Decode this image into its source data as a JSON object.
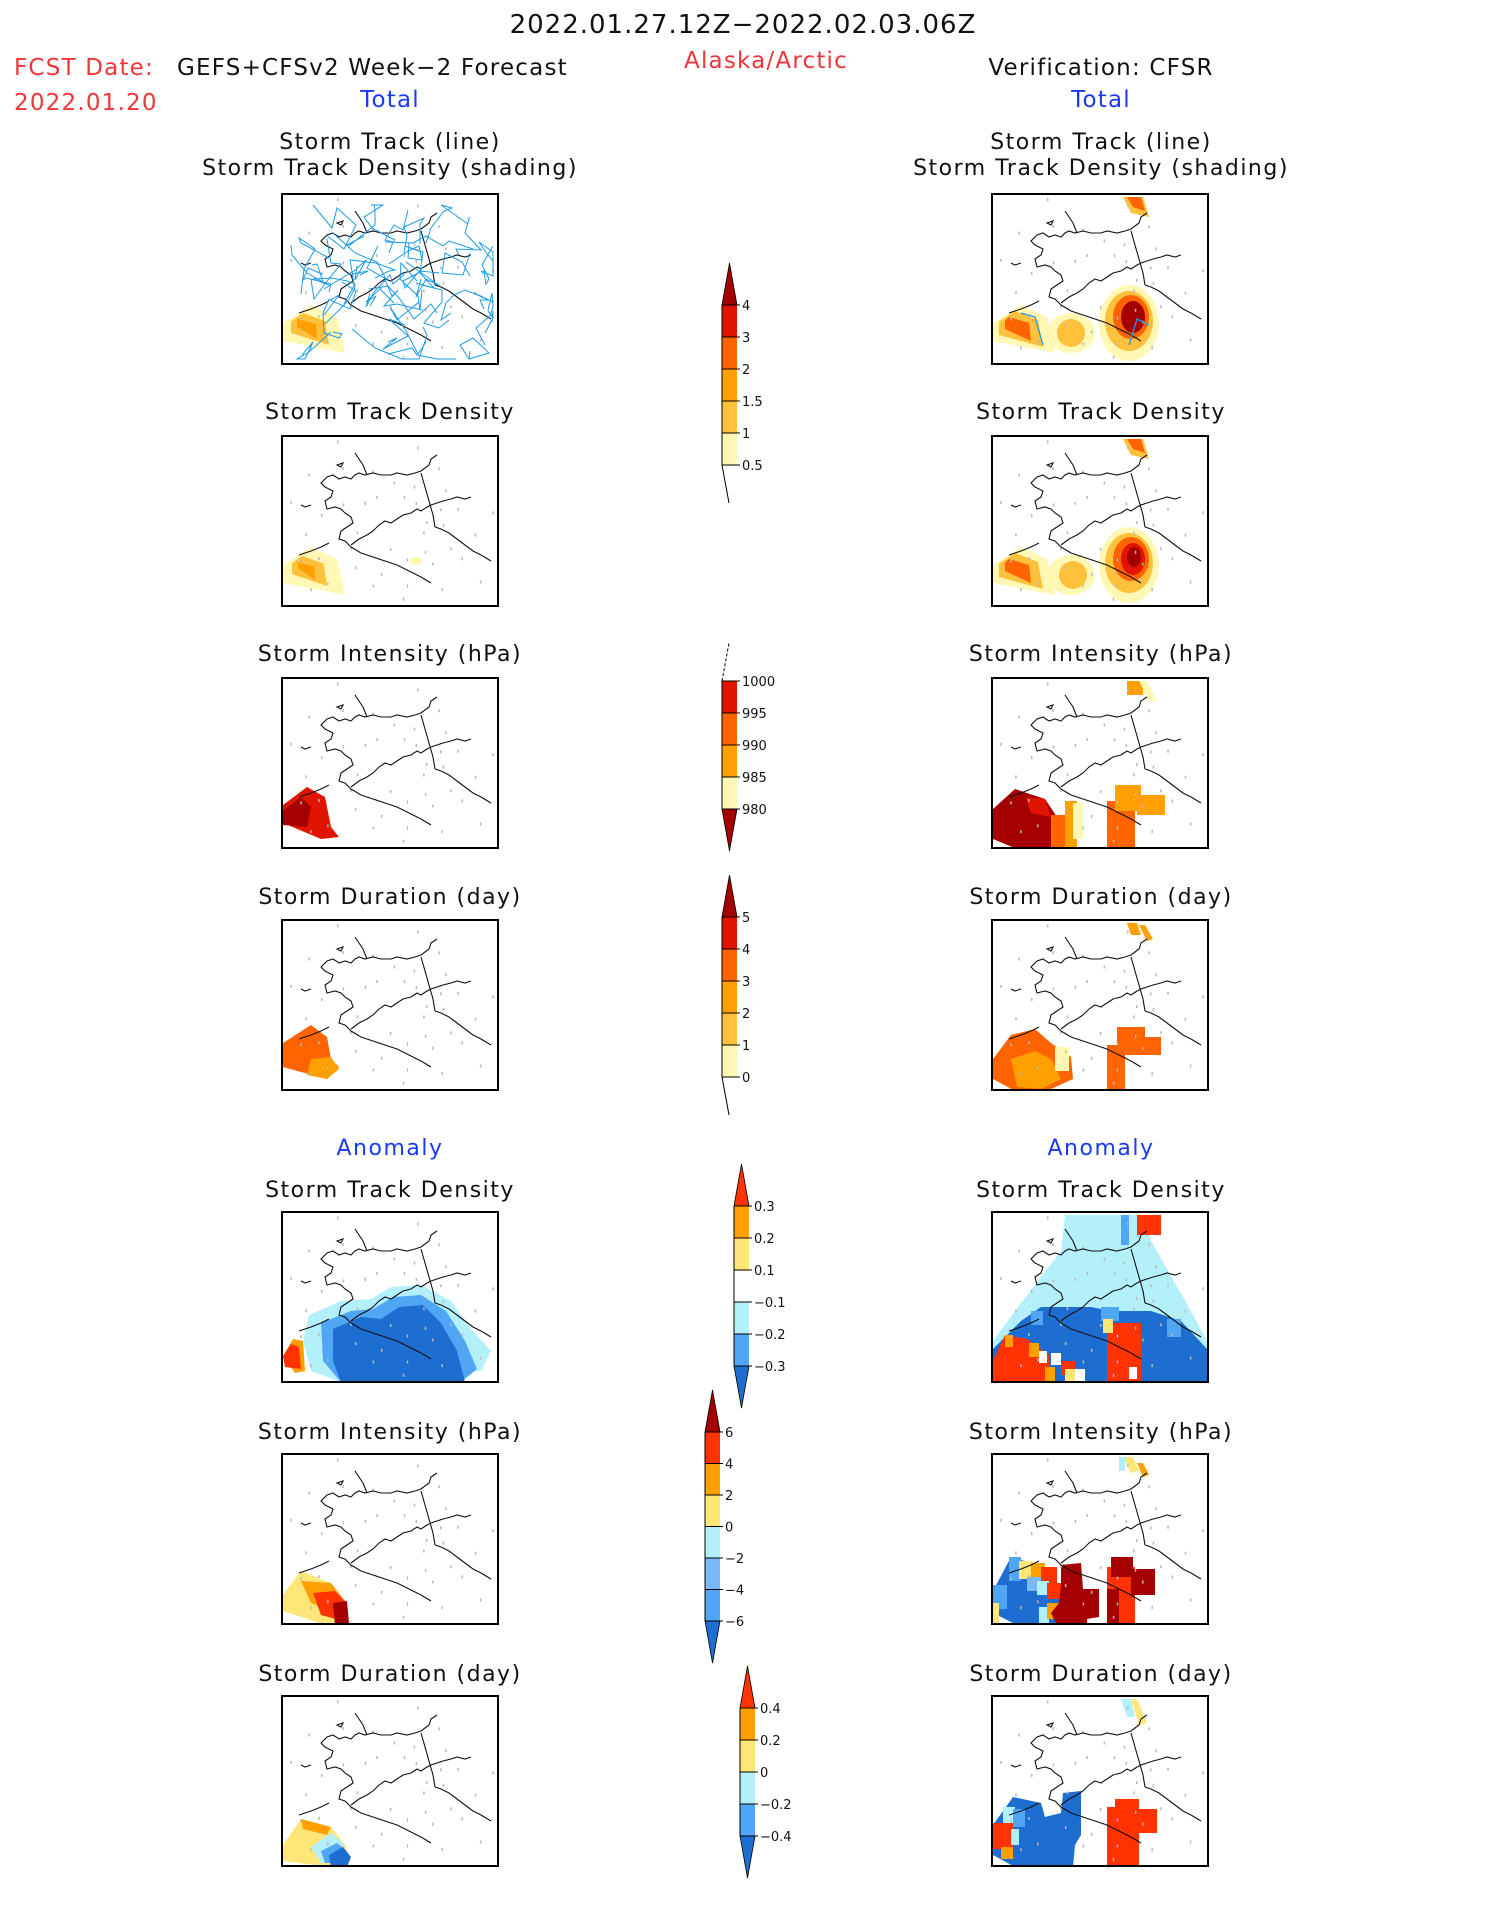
{
  "header": {
    "valid_range": "2022.01.27.12Z−2022.02.03.06Z",
    "region": "Alaska/Arctic",
    "fcst_label": "FCST Date:",
    "fcst_date": "2022.01.20",
    "forecast_source": "GEFS+CFSv2 Week−2 Forecast",
    "verification": "Verification: CFSR"
  },
  "columns": {
    "left": {
      "section_total": "Total",
      "section_anomaly": "Anomaly"
    },
    "right": {
      "section_total": "Total",
      "section_anomaly": "Anomaly"
    }
  },
  "panel_titles": {
    "track_line": "Storm Track (line)",
    "track_density_shading": "Storm Track Density (shading)",
    "track_density": "Storm Track Density",
    "intensity": "Storm Intensity (hPa)",
    "duration": "Storm Duration (day)"
  },
  "colors": {
    "line_track": "#1e9be6",
    "coast": "#111111",
    "total_scale": [
      "#fff8b4",
      "#ffc03c",
      "#ffa000",
      "#ff6400",
      "#e11400",
      "#a50000"
    ],
    "anom_pos": [
      "#ffe678",
      "#ffa000",
      "#ff3200",
      "#a50000"
    ],
    "anom_neg": [
      "#b4f0fa",
      "#78b9fa",
      "#50a5f5",
      "#1e6ed2"
    ]
  },
  "chart_data": [
    {
      "type": "heatmap",
      "title": "Storm Track Density colorbar (Total)",
      "levels": [
        0.5,
        1,
        1.5,
        2,
        3,
        4
      ],
      "tick_labels": [
        "4",
        "3",
        "2",
        "1.5",
        "1",
        "0.5"
      ],
      "extend": "max"
    },
    {
      "type": "heatmap",
      "title": "Storm Intensity colorbar (Total, hPa)",
      "levels": [
        980,
        985,
        990,
        995,
        1000
      ],
      "tick_labels": [
        "1000",
        "995",
        "990",
        "985",
        "980"
      ],
      "extend": "min"
    },
    {
      "type": "heatmap",
      "title": "Storm Duration colorbar (Total, day)",
      "levels": [
        0,
        1,
        2,
        3,
        4,
        5
      ],
      "tick_labels": [
        "5",
        "4",
        "3",
        "2",
        "1",
        "0"
      ],
      "extend": "max"
    },
    {
      "type": "heatmap",
      "title": "Storm Track Density colorbar (Anomaly)",
      "levels": [
        -0.3,
        -0.2,
        -0.1,
        0.1,
        0.2,
        0.3
      ],
      "tick_labels": [
        "0.3",
        "0.2",
        "0.1",
        "−0.1",
        "−0.2",
        "−0.3"
      ],
      "extend": "both"
    },
    {
      "type": "heatmap",
      "title": "Storm Intensity colorbar (Anomaly, hPa)",
      "levels": [
        -6,
        -4,
        -2,
        0,
        2,
        4,
        6
      ],
      "tick_labels": [
        "6",
        "4",
        "2",
        "0",
        "−2",
        "−4",
        "−6"
      ],
      "extend": "both"
    },
    {
      "type": "heatmap",
      "title": "Storm Duration colorbar (Anomaly, day)",
      "levels": [
        -0.4,
        -0.2,
        0,
        0.2,
        0.4
      ],
      "tick_labels": [
        "0.4",
        "0.2",
        "0",
        "−0.2",
        "−0.4"
      ],
      "extend": "both"
    }
  ]
}
